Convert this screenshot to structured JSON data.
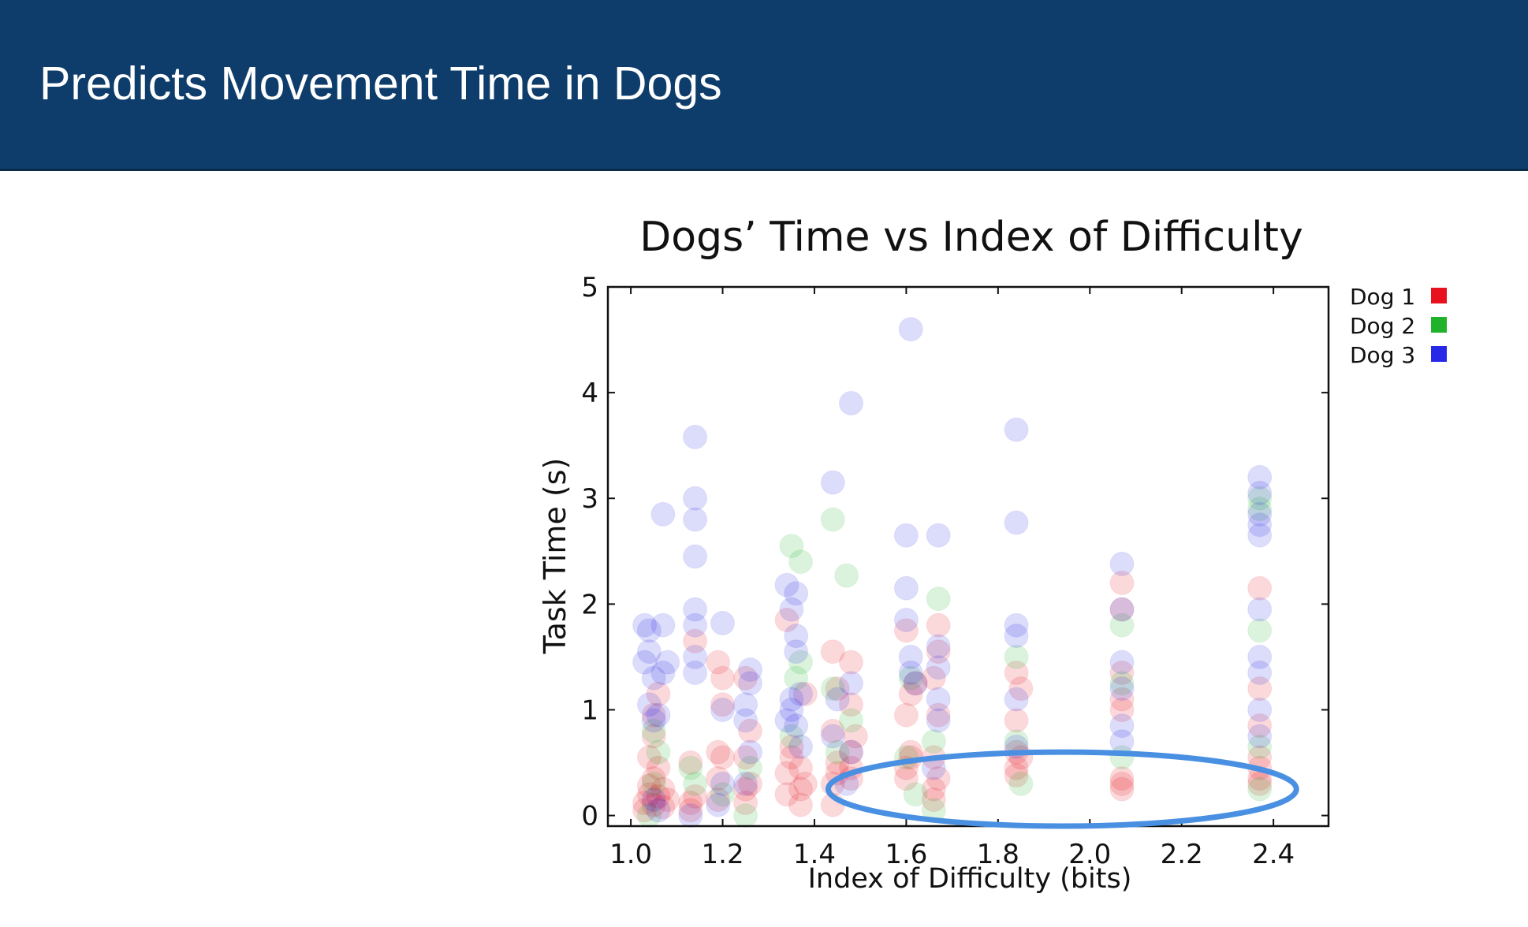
{
  "slide": {
    "title": "Predicts Movement Time in Dogs"
  },
  "chart_data": {
    "type": "scatter",
    "title": "Dogs’ Time vs Index of Difficulty",
    "xlabel": "Index of Difficulty (bits)",
    "ylabel": "Task Time (s)",
    "xlim": [
      0.95,
      2.52
    ],
    "ylim": [
      -0.1,
      5.0
    ],
    "x_ticks": [
      1.0,
      1.2,
      1.4,
      1.6,
      1.8,
      2.0,
      2.2,
      2.4
    ],
    "x_tick_labels": [
      "1.0",
      "1.2",
      "1.4",
      "1.6",
      "1.8",
      "2.0",
      "2.2",
      "2.4"
    ],
    "y_ticks": [
      0,
      1,
      2,
      3,
      4,
      5
    ],
    "y_tick_labels": [
      "0",
      "1",
      "2",
      "3",
      "4",
      "5"
    ],
    "grid": false,
    "legend_position": "outside-top-right",
    "annotation": {
      "shape": "ellipse",
      "color": "#4a90e2",
      "x_range": [
        1.43,
        2.45
      ],
      "y_range": [
        -0.1,
        0.6
      ]
    },
    "series": [
      {
        "name": "Dog 1",
        "color": "#e8121e",
        "points": [
          [
            1.03,
            0.05
          ],
          [
            1.03,
            0.12
          ],
          [
            1.04,
            0.2
          ],
          [
            1.04,
            0.28
          ],
          [
            1.05,
            0.1
          ],
          [
            1.05,
            0.35
          ],
          [
            1.06,
            0.18
          ],
          [
            1.06,
            0.45
          ],
          [
            1.07,
            0.08
          ],
          [
            1.07,
            0.25
          ],
          [
            1.08,
            0.15
          ],
          [
            1.04,
            0.55
          ],
          [
            1.05,
            0.75
          ],
          [
            1.05,
            0.95
          ],
          [
            1.06,
            1.15
          ],
          [
            1.13,
            0.05
          ],
          [
            1.13,
            0.12
          ],
          [
            1.14,
            0.18
          ],
          [
            1.13,
            0.5
          ],
          [
            1.14,
            1.65
          ],
          [
            1.19,
            0.15
          ],
          [
            1.19,
            0.35
          ],
          [
            1.2,
            0.55
          ],
          [
            1.19,
            0.6
          ],
          [
            1.2,
            1.05
          ],
          [
            1.2,
            1.3
          ],
          [
            1.19,
            1.45
          ],
          [
            1.25,
            0.12
          ],
          [
            1.25,
            0.25
          ],
          [
            1.26,
            0.3
          ],
          [
            1.25,
            0.55
          ],
          [
            1.26,
            0.8
          ],
          [
            1.25,
            1.3
          ],
          [
            1.34,
            0.2
          ],
          [
            1.34,
            0.4
          ],
          [
            1.35,
            0.55
          ],
          [
            1.35,
            0.65
          ],
          [
            1.34,
            1.85
          ],
          [
            1.37,
            0.1
          ],
          [
            1.37,
            0.25
          ],
          [
            1.38,
            0.3
          ],
          [
            1.37,
            0.45
          ],
          [
            1.38,
            1.15
          ],
          [
            1.44,
            0.1
          ],
          [
            1.44,
            0.3
          ],
          [
            1.45,
            0.4
          ],
          [
            1.45,
            0.5
          ],
          [
            1.44,
            0.8
          ],
          [
            1.45,
            1.2
          ],
          [
            1.44,
            1.55
          ],
          [
            1.48,
            0.35
          ],
          [
            1.48,
            0.45
          ],
          [
            1.48,
            0.6
          ],
          [
            1.49,
            0.75
          ],
          [
            1.48,
            1.05
          ],
          [
            1.48,
            1.45
          ],
          [
            1.6,
            0.35
          ],
          [
            1.6,
            0.45
          ],
          [
            1.61,
            0.55
          ],
          [
            1.61,
            0.6
          ],
          [
            1.6,
            0.95
          ],
          [
            1.61,
            1.15
          ],
          [
            1.62,
            1.25
          ],
          [
            1.6,
            1.75
          ],
          [
            1.66,
            0.15
          ],
          [
            1.66,
            0.25
          ],
          [
            1.67,
            0.35
          ],
          [
            1.66,
            0.55
          ],
          [
            1.67,
            0.95
          ],
          [
            1.66,
            1.3
          ],
          [
            1.67,
            1.55
          ],
          [
            1.67,
            1.8
          ],
          [
            1.84,
            0.38
          ],
          [
            1.84,
            0.45
          ],
          [
            1.85,
            0.55
          ],
          [
            1.84,
            0.6
          ],
          [
            1.84,
            0.9
          ],
          [
            1.85,
            1.2
          ],
          [
            1.84,
            1.35
          ],
          [
            2.07,
            0.25
          ],
          [
            2.07,
            0.3
          ],
          [
            2.07,
            0.35
          ],
          [
            2.07,
            1.0
          ],
          [
            2.07,
            1.1
          ],
          [
            2.07,
            1.35
          ],
          [
            2.07,
            1.95
          ],
          [
            2.07,
            2.2
          ],
          [
            2.37,
            0.3
          ],
          [
            2.37,
            0.35
          ],
          [
            2.37,
            0.45
          ],
          [
            2.37,
            0.55
          ],
          [
            2.37,
            0.85
          ],
          [
            2.37,
            1.2
          ],
          [
            2.37,
            2.15
          ]
        ]
      },
      {
        "name": "Dog 2",
        "color": "#1fb22a",
        "points": [
          [
            1.04,
            0.0
          ],
          [
            1.05,
            0.3
          ],
          [
            1.06,
            0.6
          ],
          [
            1.05,
            0.8
          ],
          [
            1.14,
            0.3
          ],
          [
            1.13,
            0.45
          ],
          [
            1.2,
            0.2
          ],
          [
            1.25,
            0.0
          ],
          [
            1.26,
            0.45
          ],
          [
            1.35,
            2.55
          ],
          [
            1.37,
            2.4
          ],
          [
            1.36,
            1.3
          ],
          [
            1.35,
            0.75
          ],
          [
            1.37,
            1.45
          ],
          [
            1.44,
            2.8
          ],
          [
            1.47,
            2.27
          ],
          [
            1.44,
            1.2
          ],
          [
            1.45,
            0.6
          ],
          [
            1.48,
            0.9
          ],
          [
            1.61,
            1.3
          ],
          [
            1.6,
            0.55
          ],
          [
            1.67,
            2.05
          ],
          [
            1.66,
            0.05
          ],
          [
            1.66,
            0.7
          ],
          [
            1.62,
            0.2
          ],
          [
            1.84,
            1.5
          ],
          [
            1.84,
            0.7
          ],
          [
            1.85,
            0.3
          ],
          [
            2.07,
            1.8
          ],
          [
            2.07,
            1.25
          ],
          [
            2.07,
            0.55
          ],
          [
            2.37,
            3.0
          ],
          [
            2.37,
            2.9
          ],
          [
            2.37,
            1.75
          ],
          [
            2.37,
            0.25
          ],
          [
            2.37,
            0.65
          ]
        ]
      },
      {
        "name": "Dog 3",
        "color": "#2828e8",
        "points": [
          [
            1.03,
            1.8
          ],
          [
            1.04,
            1.75
          ],
          [
            1.04,
            1.55
          ],
          [
            1.03,
            1.45
          ],
          [
            1.05,
            1.3
          ],
          [
            1.04,
            1.05
          ],
          [
            1.05,
            0.9
          ],
          [
            1.06,
            0.95
          ],
          [
            1.07,
            1.8
          ],
          [
            1.08,
            1.45
          ],
          [
            1.07,
            1.35
          ],
          [
            1.07,
            2.85
          ],
          [
            1.05,
            0.15
          ],
          [
            1.06,
            0.05
          ],
          [
            1.14,
            3.58
          ],
          [
            1.14,
            3.0
          ],
          [
            1.14,
            2.8
          ],
          [
            1.14,
            2.45
          ],
          [
            1.14,
            1.95
          ],
          [
            1.14,
            1.8
          ],
          [
            1.14,
            1.5
          ],
          [
            1.14,
            1.35
          ],
          [
            1.13,
            0.0
          ],
          [
            1.2,
            1.82
          ],
          [
            1.2,
            1.0
          ],
          [
            1.2,
            0.3
          ],
          [
            1.19,
            0.1
          ],
          [
            1.26,
            1.38
          ],
          [
            1.26,
            1.25
          ],
          [
            1.25,
            1.05
          ],
          [
            1.25,
            0.9
          ],
          [
            1.26,
            0.6
          ],
          [
            1.25,
            0.3
          ],
          [
            1.34,
            2.18
          ],
          [
            1.36,
            2.1
          ],
          [
            1.35,
            1.95
          ],
          [
            1.36,
            1.7
          ],
          [
            1.36,
            1.55
          ],
          [
            1.35,
            1.1
          ],
          [
            1.35,
            1.0
          ],
          [
            1.34,
            0.9
          ],
          [
            1.36,
            0.85
          ],
          [
            1.37,
            1.15
          ],
          [
            1.37,
            0.65
          ],
          [
            1.44,
            3.15
          ],
          [
            1.48,
            3.9
          ],
          [
            1.45,
            1.1
          ],
          [
            1.44,
            0.75
          ],
          [
            1.48,
            1.25
          ],
          [
            1.48,
            0.6
          ],
          [
            1.47,
            0.3
          ],
          [
            1.61,
            4.6
          ],
          [
            1.6,
            2.65
          ],
          [
            1.67,
            2.65
          ],
          [
            1.6,
            2.15
          ],
          [
            1.6,
            1.85
          ],
          [
            1.61,
            1.5
          ],
          [
            1.61,
            1.35
          ],
          [
            1.62,
            1.25
          ],
          [
            1.67,
            1.6
          ],
          [
            1.67,
            1.4
          ],
          [
            1.67,
            1.1
          ],
          [
            1.67,
            0.9
          ],
          [
            1.66,
            0.45
          ],
          [
            1.84,
            3.65
          ],
          [
            1.84,
            2.77
          ],
          [
            1.84,
            1.8
          ],
          [
            1.84,
            1.7
          ],
          [
            1.84,
            1.1
          ],
          [
            1.84,
            0.65
          ],
          [
            2.07,
            2.38
          ],
          [
            2.07,
            1.95
          ],
          [
            2.07,
            1.45
          ],
          [
            2.07,
            1.2
          ],
          [
            2.07,
            0.85
          ],
          [
            2.07,
            0.7
          ],
          [
            2.37,
            3.2
          ],
          [
            2.37,
            3.05
          ],
          [
            2.37,
            2.85
          ],
          [
            2.37,
            2.75
          ],
          [
            2.37,
            2.65
          ],
          [
            2.37,
            1.95
          ],
          [
            2.37,
            1.5
          ],
          [
            2.37,
            1.35
          ],
          [
            2.37,
            1.0
          ],
          [
            2.37,
            0.75
          ]
        ]
      }
    ]
  }
}
